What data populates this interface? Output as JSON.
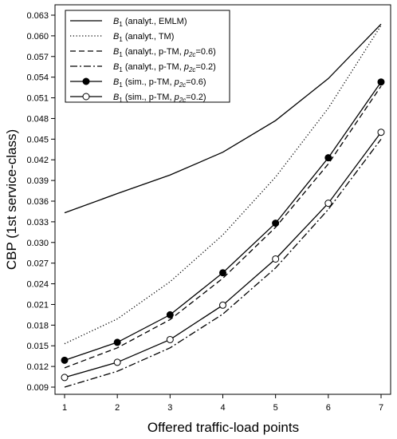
{
  "chart_data": {
    "type": "line",
    "xlabel": "Offered traffic-load points",
    "ylabel": "CBP (1st service-class)",
    "x": [
      1,
      2,
      3,
      4,
      5,
      6,
      7
    ],
    "xlim": [
      1,
      7
    ],
    "ylim": [
      0.009,
      0.063
    ],
    "x_ticks": [
      "1",
      "2",
      "3",
      "4",
      "5",
      "6",
      "7"
    ],
    "y_ticks": [
      "0.009",
      "0.012",
      "0.015",
      "0.018",
      "0.021",
      "0.024",
      "0.027",
      "0.030",
      "0.033",
      "0.036",
      "0.039",
      "0.042",
      "0.045",
      "0.048",
      "0.051",
      "0.054",
      "0.057",
      "0.060",
      "0.063"
    ],
    "grid": false,
    "legend_position": "top-left",
    "series": [
      {
        "name": "B1 (analyt., EMLM)",
        "legend": {
          "sym": "B",
          "sub": "1",
          "parts": [
            {
              "t": " (analyt., EMLM)"
            }
          ]
        },
        "style": "solid",
        "marker": "none",
        "values": [
          0.0343,
          0.0371,
          0.0398,
          0.0431,
          0.0477,
          0.0538,
          0.0617
        ]
      },
      {
        "name": "B1 (analyt., TM)",
        "legend": {
          "sym": "B",
          "sub": "1",
          "parts": [
            {
              "t": " (analyt., TM)"
            }
          ]
        },
        "style": "dotted",
        "marker": "none",
        "values": [
          0.0153,
          0.0189,
          0.0243,
          0.0311,
          0.0395,
          0.0495,
          0.0615
        ]
      },
      {
        "name": "B1 (analyt., p-TM, p2c=0.6)",
        "legend": {
          "sym": "B",
          "sub": "1",
          "parts": [
            {
              "t": " (analyt., p-TM, "
            },
            {
              "i": "p",
              "s": "2c"
            },
            {
              "t": "=0.6)"
            }
          ]
        },
        "style": "dashed",
        "marker": "none",
        "values": [
          0.0118,
          0.0147,
          0.0188,
          0.0248,
          0.0322,
          0.0414,
          0.0527
        ]
      },
      {
        "name": "B1 (analyt., p-TM, p2c=0.2)",
        "legend": {
          "sym": "B",
          "sub": "1",
          "parts": [
            {
              "t": " (analyt., p-TM, "
            },
            {
              "i": "p",
              "s": "2c"
            },
            {
              "t": "=0.2)"
            }
          ]
        },
        "style": "dashdot",
        "marker": "none",
        "values": [
          0.009,
          0.0113,
          0.0147,
          0.0196,
          0.0263,
          0.0348,
          0.045
        ]
      },
      {
        "name": "B1 (sim., p-TM, p2c=0.6)",
        "legend": {
          "sym": "B",
          "sub": "1",
          "parts": [
            {
              "t": " (sim., p-TM, "
            },
            {
              "i": "p",
              "s": "2c"
            },
            {
              "t": "=0.6)"
            }
          ]
        },
        "style": "solid",
        "marker": "filled-circle",
        "values": [
          0.0129,
          0.0155,
          0.0195,
          0.0256,
          0.0328,
          0.0423,
          0.0533
        ]
      },
      {
        "name": "B1 (sim., p-TM, p2c=0.2)",
        "legend": {
          "sym": "B",
          "sub": "1",
          "parts": [
            {
              "t": " (sim., p-TM, "
            },
            {
              "i": "p",
              "s": "2c"
            },
            {
              "t": "=0.2)"
            }
          ]
        },
        "style": "solid",
        "marker": "open-circle",
        "values": [
          0.0104,
          0.0126,
          0.0159,
          0.0209,
          0.0276,
          0.0357,
          0.046
        ]
      }
    ]
  }
}
